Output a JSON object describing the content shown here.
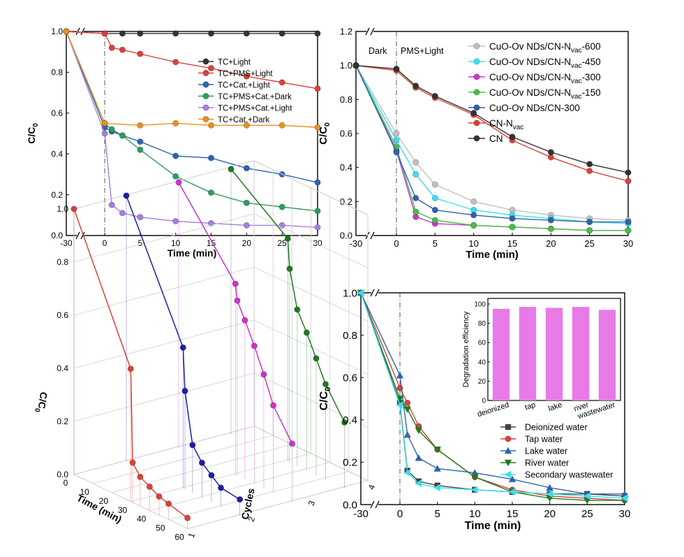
{
  "colors": {
    "black": "#333333",
    "red": "#d9423c",
    "blue": "#2e63b0",
    "green": "#2e9c5c",
    "purple": "#a57ee0",
    "orange": "#e8901e",
    "gray": "#c0c0c0",
    "cyan": "#38e0ee",
    "magenta": "#cc33cc",
    "lightgreen": "#44c044",
    "darkgreen": "#1e7a1e",
    "skyblue": "#4a7ecf",
    "bar": "#e87ae8"
  },
  "chart_data": [
    {
      "type": "line",
      "panel": "a",
      "xlabel": "Time (min)",
      "ylabel": "C/C0",
      "ylim": [
        0,
        1.0
      ],
      "x_ticks": [
        "-30",
        "0",
        "5",
        "10",
        "15",
        "20",
        "25",
        "30"
      ],
      "y_ticks": [
        "0.0",
        "0.2",
        "0.4",
        "0.6",
        "0.8",
        "1.0"
      ],
      "legend_position": "top-right",
      "series": [
        {
          "name": "TC+Light",
          "color": "#333333",
          "x": [
            -30,
            0,
            2.5,
            5,
            10,
            15,
            20,
            25,
            30
          ],
          "y": [
            1.0,
            0.99,
            0.99,
            0.99,
            0.99,
            0.99,
            0.99,
            0.99,
            0.99
          ]
        },
        {
          "name": "TC+PMS+Light",
          "color": "#d9423c",
          "x": [
            -30,
            0,
            1,
            2.5,
            5,
            10,
            15,
            20,
            25,
            30
          ],
          "y": [
            1.0,
            0.99,
            0.92,
            0.91,
            0.89,
            0.85,
            0.82,
            0.78,
            0.75,
            0.72
          ]
        },
        {
          "name": "TC+Cat.+Light",
          "color": "#2e63b0",
          "x": [
            -30,
            0,
            1,
            2.5,
            5,
            10,
            15,
            20,
            25,
            30
          ],
          "y": [
            1.0,
            0.53,
            0.51,
            0.49,
            0.46,
            0.39,
            0.38,
            0.33,
            0.3,
            0.26
          ]
        },
        {
          "name": "TC+PMS+Cat.+Dark",
          "color": "#2e9c5c",
          "x": [
            -30,
            0,
            1,
            2.5,
            5,
            10,
            15,
            20,
            25,
            30
          ],
          "y": [
            1.0,
            0.55,
            0.52,
            0.49,
            0.42,
            0.29,
            0.21,
            0.16,
            0.14,
            0.12
          ]
        },
        {
          "name": "TC+PMS+Cat.+Light",
          "color": "#a57ee0",
          "x": [
            -30,
            0,
            1,
            2.5,
            5,
            10,
            15,
            20,
            25,
            30
          ],
          "y": [
            1.0,
            0.5,
            0.15,
            0.11,
            0.09,
            0.07,
            0.06,
            0.05,
            0.05,
            0.04
          ]
        },
        {
          "name": "TC+Cat.+Dark",
          "color": "#e8901e",
          "x": [
            -30,
            0,
            5,
            10,
            15,
            20,
            25,
            30
          ],
          "y": [
            1.0,
            0.55,
            0.54,
            0.55,
            0.54,
            0.54,
            0.54,
            0.53
          ]
        }
      ]
    },
    {
      "type": "line",
      "panel": "b",
      "xlabel": "Time (min)",
      "ylabel": "C/C0",
      "ylim": [
        0,
        1.2
      ],
      "x_ticks": [
        "-30",
        "0",
        "5",
        "10",
        "15",
        "20",
        "25",
        "30"
      ],
      "y_ticks": [
        "0.0",
        "0.2",
        "0.4",
        "0.6",
        "0.8",
        "1.0",
        "1.2"
      ],
      "annotations": [
        "Dark",
        "PMS+Light"
      ],
      "legend_position": "top-right",
      "series": [
        {
          "name": "CuO-Ov NDs/CN-Nvac-600",
          "label_main": "CuO-Ov NDs/CN-N",
          "label_sub": "vac",
          "label_tail": "-600",
          "color": "#c0c0c0",
          "x": [
            -30,
            0,
            2.5,
            5,
            10,
            15,
            20,
            25,
            30
          ],
          "y": [
            1.0,
            0.6,
            0.43,
            0.3,
            0.2,
            0.15,
            0.12,
            0.1,
            0.09
          ]
        },
        {
          "name": "CuO-Ov NDs/CN-Nvac-450",
          "label_main": "CuO-Ov NDs/CN-N",
          "label_sub": "vac",
          "label_tail": "-450",
          "color": "#38e0ee",
          "x": [
            -30,
            0,
            2.5,
            5,
            10,
            15,
            20,
            25,
            30
          ],
          "y": [
            1.0,
            0.56,
            0.36,
            0.22,
            0.15,
            0.12,
            0.1,
            0.08,
            0.07
          ]
        },
        {
          "name": "CuO-Ov NDs/CN-Nvac-300",
          "label_main": "CuO-Ov NDs/CN-N",
          "label_sub": "vac",
          "label_tail": "-300",
          "color": "#cc33cc",
          "x": [
            -30,
            0,
            2.5,
            5,
            10,
            15,
            20,
            25,
            30
          ],
          "y": [
            1.0,
            0.5,
            0.11,
            0.07,
            0.06,
            0.05,
            0.04,
            0.03,
            0.03
          ]
        },
        {
          "name": "CuO-Ov NDs/CN-Nvac-150",
          "label_main": "CuO-Ov NDs/CN-N",
          "label_sub": "vac",
          "label_tail": "-150",
          "color": "#44c044",
          "x": [
            -30,
            0,
            2.5,
            5,
            10,
            15,
            20,
            25,
            30
          ],
          "y": [
            1.0,
            0.52,
            0.14,
            0.09,
            0.06,
            0.05,
            0.04,
            0.03,
            0.03
          ]
        },
        {
          "name": "CuO-Ov NDs/CN-300",
          "label_main": "CuO-Ov NDs/CN-300",
          "label_sub": "",
          "label_tail": "",
          "color": "#2e63b0",
          "x": [
            -30,
            0,
            2.5,
            5,
            10,
            15,
            20,
            25,
            30
          ],
          "y": [
            1.0,
            0.49,
            0.22,
            0.15,
            0.12,
            0.1,
            0.09,
            0.08,
            0.08
          ]
        },
        {
          "name": "CN-Nvac",
          "label_main": "CN-N",
          "label_sub": "vac",
          "label_tail": "",
          "color": "#d9423c",
          "x": [
            -30,
            0,
            2.5,
            5,
            10,
            15,
            20,
            25,
            30
          ],
          "y": [
            1.0,
            0.97,
            0.87,
            0.81,
            0.71,
            0.56,
            0.46,
            0.38,
            0.32
          ]
        },
        {
          "name": "CN",
          "label_main": "CN",
          "label_sub": "",
          "label_tail": "",
          "color": "#333333",
          "x": [
            -30,
            0,
            2.5,
            5,
            10,
            15,
            20,
            25,
            30
          ],
          "y": [
            1.0,
            0.98,
            0.88,
            0.82,
            0.72,
            0.58,
            0.49,
            0.42,
            0.37
          ]
        }
      ]
    },
    {
      "type": "line3d",
      "panel": "c",
      "xlabel": "Time (min)",
      "ylabel": "Cycles",
      "zlabel": "C/C0",
      "x_ticks": [
        "0",
        "10",
        "20",
        "30",
        "40",
        "50",
        "60"
      ],
      "y_ticks": [
        "1",
        "2",
        "3",
        "4"
      ],
      "z_ticks": [
        "0.0",
        "0.2",
        "0.4",
        "0.6",
        "0.8",
        "1.0"
      ],
      "series": [
        {
          "name": "1",
          "color": "#d9423c",
          "x": [
            0,
            30,
            31,
            35,
            40,
            45,
            50,
            60
          ],
          "y": [
            1.0,
            0.5,
            0.15,
            0.11,
            0.09,
            0.07,
            0.06,
            0.04
          ]
        },
        {
          "name": "2",
          "color": "#1e1ea8",
          "x": [
            0,
            30,
            31,
            35,
            40,
            45,
            50,
            60
          ],
          "y": [
            1.0,
            0.53,
            0.37,
            0.18,
            0.13,
            0.1,
            0.07,
            0.06
          ]
        },
        {
          "name": "3",
          "color": "#cc33cc",
          "x": [
            0,
            30,
            31,
            35,
            40,
            45,
            50,
            60
          ],
          "y": [
            1.0,
            0.72,
            0.66,
            0.6,
            0.52,
            0.43,
            0.33,
            0.22
          ]
        },
        {
          "name": "4",
          "color": "#1e7a1e",
          "x": [
            0,
            30,
            31,
            35,
            40,
            45,
            50,
            60
          ],
          "y": [
            1.0,
            0.84,
            0.73,
            0.59,
            0.52,
            0.44,
            0.36,
            0.25
          ]
        }
      ]
    },
    {
      "type": "line",
      "panel": "d",
      "xlabel": "Time (min)",
      "ylabel": "C/C0",
      "ylim": [
        0,
        1.0
      ],
      "x_ticks": [
        "-30",
        "0",
        "5",
        "10",
        "15",
        "20",
        "25",
        "30"
      ],
      "y_ticks": [
        "0.0",
        "0.2",
        "0.4",
        "0.6",
        "0.8",
        "1.0"
      ],
      "legend_position": "bottom-right",
      "series": [
        {
          "name": "Deionized water",
          "color": "#444444",
          "marker": "square",
          "x": [
            -30,
            0,
            1,
            2.5,
            5,
            10,
            15,
            20,
            25,
            30
          ],
          "y": [
            1.0,
            0.48,
            0.16,
            0.11,
            0.09,
            0.07,
            0.06,
            0.05,
            0.05,
            0.04
          ]
        },
        {
          "name": "Tap water",
          "color": "#d9423c",
          "marker": "circle",
          "x": [
            -30,
            0,
            1,
            2.5,
            5,
            10,
            15,
            20,
            25,
            30
          ],
          "y": [
            1.0,
            0.55,
            0.48,
            0.37,
            0.26,
            0.13,
            0.07,
            0.04,
            0.03,
            0.02
          ]
        },
        {
          "name": "Lake water",
          "color": "#2e63b0",
          "marker": "triangle",
          "x": [
            -30,
            0,
            1,
            2.5,
            5,
            10,
            15,
            20,
            25,
            30
          ],
          "y": [
            1.0,
            0.61,
            0.33,
            0.22,
            0.17,
            0.15,
            0.12,
            0.08,
            0.05,
            0.05
          ]
        },
        {
          "name": "River water",
          "color": "#1e7a1e",
          "marker": "tri-down",
          "x": [
            -30,
            0,
            1,
            2.5,
            5,
            10,
            15,
            20,
            25,
            30
          ],
          "y": [
            1.0,
            0.5,
            0.45,
            0.35,
            0.26,
            0.13,
            0.06,
            0.03,
            0.02,
            0.02
          ]
        },
        {
          "name": "Secondary wastewater",
          "color": "#38e0ee",
          "marker": "tri-left",
          "x": [
            -30,
            0,
            1,
            2.5,
            5,
            10,
            15,
            20,
            25,
            30
          ],
          "y": [
            1.0,
            0.47,
            0.15,
            0.1,
            0.08,
            0.07,
            0.06,
            0.05,
            0.04,
            0.03
          ]
        }
      ]
    },
    {
      "type": "bar",
      "panel": "d-inset",
      "ylabel": "Degradation efficiency",
      "ylim": [
        0,
        100
      ],
      "y_ticks": [
        "0",
        "20",
        "40",
        "60",
        "80",
        "100"
      ],
      "categories": [
        "deionized",
        "tap",
        "lake",
        "river",
        "wastewater"
      ],
      "values": [
        95,
        97,
        96,
        97,
        94
      ]
    }
  ]
}
